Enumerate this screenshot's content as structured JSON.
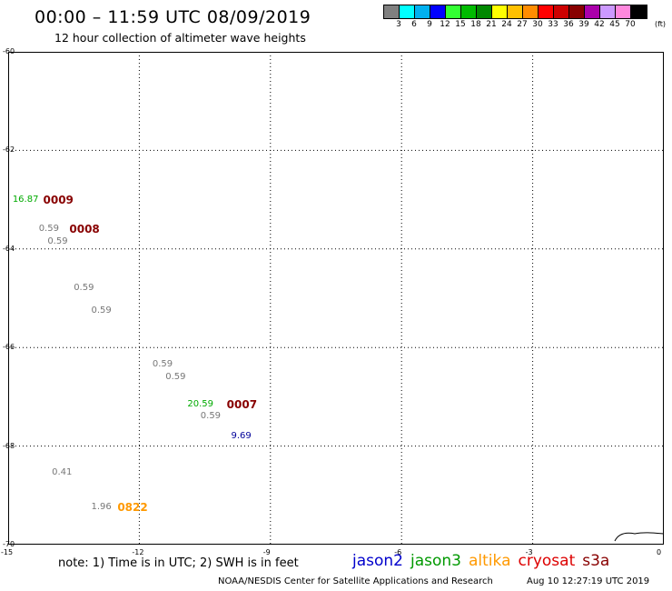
{
  "header": {
    "title": "00:00 – 11:59 UTC 08/09/2019",
    "subtitle": "12 hour collection of altimeter wave heights"
  },
  "colorbar": {
    "unit": "(ft)",
    "swatches": [
      "#808080",
      "#00ffff",
      "#00b0f0",
      "#0000ff",
      "#33ff33",
      "#00bb00",
      "#008800",
      "#ffff00",
      "#ffc000",
      "#ff8c00",
      "#ff0000",
      "#cc0000",
      "#880000",
      "#aa00aa",
      "#cc99ff",
      "#ff88dd",
      "#000000"
    ],
    "labels": [
      "3",
      "6",
      "9",
      "12",
      "15",
      "18",
      "21",
      "24",
      "27",
      "30",
      "33",
      "36",
      "39",
      "42",
      "45",
      "70"
    ]
  },
  "map": {
    "lat_ticks": [
      "-60",
      "-62",
      "-64",
      "-66",
      "-68",
      "-70"
    ],
    "lon_ticks": [
      "-15",
      "-12",
      "-9",
      "-6",
      "-3",
      "0"
    ],
    "observations": [
      {
        "value": "16.87",
        "color": "#00aa00",
        "lon": -14.9,
        "lat": -63.0
      },
      {
        "value": "0.59",
        "color": "#777777",
        "lon": -14.3,
        "lat": -63.6
      },
      {
        "value": "0.59",
        "color": "#777777",
        "lon": -14.1,
        "lat": -63.85
      },
      {
        "value": "0.59",
        "color": "#777777",
        "lon": -13.5,
        "lat": -64.8
      },
      {
        "value": "0.59",
        "color": "#777777",
        "lon": -13.1,
        "lat": -65.25
      },
      {
        "value": "0.59",
        "color": "#777777",
        "lon": -11.7,
        "lat": -66.35
      },
      {
        "value": "0.59",
        "color": "#777777",
        "lon": -11.4,
        "lat": -66.6
      },
      {
        "value": "20.59",
        "color": "#00aa00",
        "lon": -10.9,
        "lat": -67.15
      },
      {
        "value": "0.59",
        "color": "#777777",
        "lon": -10.6,
        "lat": -67.4
      },
      {
        "value": "9.69",
        "color": "#000099",
        "lon": -9.9,
        "lat": -67.8
      },
      {
        "value": "0.41",
        "color": "#777777",
        "lon": -14.0,
        "lat": -68.55
      },
      {
        "value": "1.96",
        "color": "#777777",
        "lon": -13.1,
        "lat": -69.25
      }
    ],
    "times": [
      {
        "value": "0009",
        "color": "#880000",
        "lon": -14.2,
        "lat": -63.0
      },
      {
        "value": "0008",
        "color": "#880000",
        "lon": -13.6,
        "lat": -63.6
      },
      {
        "value": "0007",
        "color": "#880000",
        "lon": -10.0,
        "lat": -67.15
      },
      {
        "value": "0822",
        "color": "#ff9900",
        "lon": -12.5,
        "lat": -69.25
      }
    ]
  },
  "note": "note: 1) Time is in UTC; 2) SWH is in feet",
  "legend": [
    {
      "name": "jason2",
      "color": "#0000cc"
    },
    {
      "name": "jason3",
      "color": "#009900"
    },
    {
      "name": "altika",
      "color": "#ff9900"
    },
    {
      "name": "cryosat",
      "color": "#dd0000"
    },
    {
      "name": "s3a",
      "color": "#880000"
    }
  ],
  "footer": {
    "credit": "NOAA/NESDIS Center for Satellite Applications and Research",
    "timestamp": "Aug 10 12:27:19 UTC 2019"
  }
}
